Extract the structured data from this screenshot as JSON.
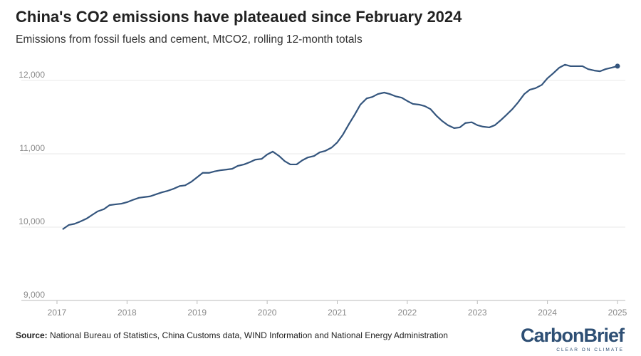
{
  "chart_data": {
    "type": "line",
    "title": "China's CO2 emissions have plateaued since February 2024",
    "subtitle": "Emissions from fossil fuels and cement, MtCO2, rolling 12-month totals",
    "source_label": "Source:",
    "source": "National Bureau of Statistics, China Customs data, WIND Information and National Energy Administration",
    "logo": "CarbonBrief",
    "logo_tagline": "CLEAR ON CLIMATE",
    "xlim": [
      2017,
      2025
    ],
    "xticks": [
      2017,
      2018,
      2019,
      2020,
      2021,
      2022,
      2023,
      2024,
      2025
    ],
    "ylim": [
      9000,
      12300
    ],
    "yticks": [
      {
        "value": 9000,
        "label": "9,000"
      },
      {
        "value": 10000,
        "label": "10,000"
      },
      {
        "value": 11000,
        "label": "11,000"
      },
      {
        "value": 12000,
        "label": "12,000"
      }
    ],
    "grid": true,
    "x": [
      2017.08,
      2017.17,
      2017.25,
      2017.33,
      2017.42,
      2017.5,
      2017.58,
      2017.67,
      2017.75,
      2017.83,
      2017.92,
      2018.0,
      2018.08,
      2018.17,
      2018.25,
      2018.33,
      2018.42,
      2018.5,
      2018.58,
      2018.67,
      2018.75,
      2018.83,
      2018.92,
      2019.0,
      2019.08,
      2019.17,
      2019.25,
      2019.33,
      2019.42,
      2019.5,
      2019.58,
      2019.67,
      2019.75,
      2019.83,
      2019.92,
      2020.0,
      2020.08,
      2020.17,
      2020.25,
      2020.33,
      2020.42,
      2020.5,
      2020.58,
      2020.67,
      2020.75,
      2020.83,
      2020.92,
      2021.0,
      2021.08,
      2021.17,
      2021.25,
      2021.33,
      2021.42,
      2021.5,
      2021.58,
      2021.67,
      2021.75,
      2021.83,
      2021.92,
      2022.0,
      2022.08,
      2022.17,
      2022.25,
      2022.33,
      2022.42,
      2022.5,
      2022.58,
      2022.67,
      2022.75,
      2022.83,
      2022.92,
      2023.0,
      2023.08,
      2023.17,
      2023.25,
      2023.33,
      2023.42,
      2023.5,
      2023.58,
      2023.67,
      2023.75,
      2023.83,
      2023.92,
      2024.0,
      2024.08,
      2024.17,
      2024.25,
      2024.33,
      2024.42,
      2024.5,
      2024.58,
      2024.67,
      2024.75,
      2024.83,
      2024.92,
      2025.0
    ],
    "series": [
      {
        "name": "China CO2 emissions",
        "color": "#34557d",
        "values": [
          9970,
          10030,
          10045,
          10075,
          10115,
          10165,
          10215,
          10245,
          10300,
          10310,
          10320,
          10340,
          10370,
          10400,
          10410,
          10420,
          10450,
          10475,
          10495,
          10525,
          10560,
          10570,
          10620,
          10680,
          10740,
          10740,
          10760,
          10775,
          10785,
          10795,
          10835,
          10855,
          10885,
          10920,
          10930,
          10990,
          11030,
          10970,
          10900,
          10855,
          10855,
          10910,
          10950,
          10970,
          11020,
          11040,
          11085,
          11155,
          11260,
          11410,
          11535,
          11670,
          11755,
          11775,
          11815,
          11835,
          11815,
          11785,
          11765,
          11720,
          11680,
          11670,
          11650,
          11610,
          11515,
          11445,
          11390,
          11350,
          11360,
          11420,
          11430,
          11390,
          11370,
          11360,
          11390,
          11455,
          11535,
          11610,
          11700,
          11815,
          11875,
          11895,
          11940,
          12030,
          12095,
          12175,
          12215,
          12195,
          12195,
          12195,
          12155,
          12135,
          12125,
          12155,
          12175,
          12195
        ]
      }
    ]
  }
}
